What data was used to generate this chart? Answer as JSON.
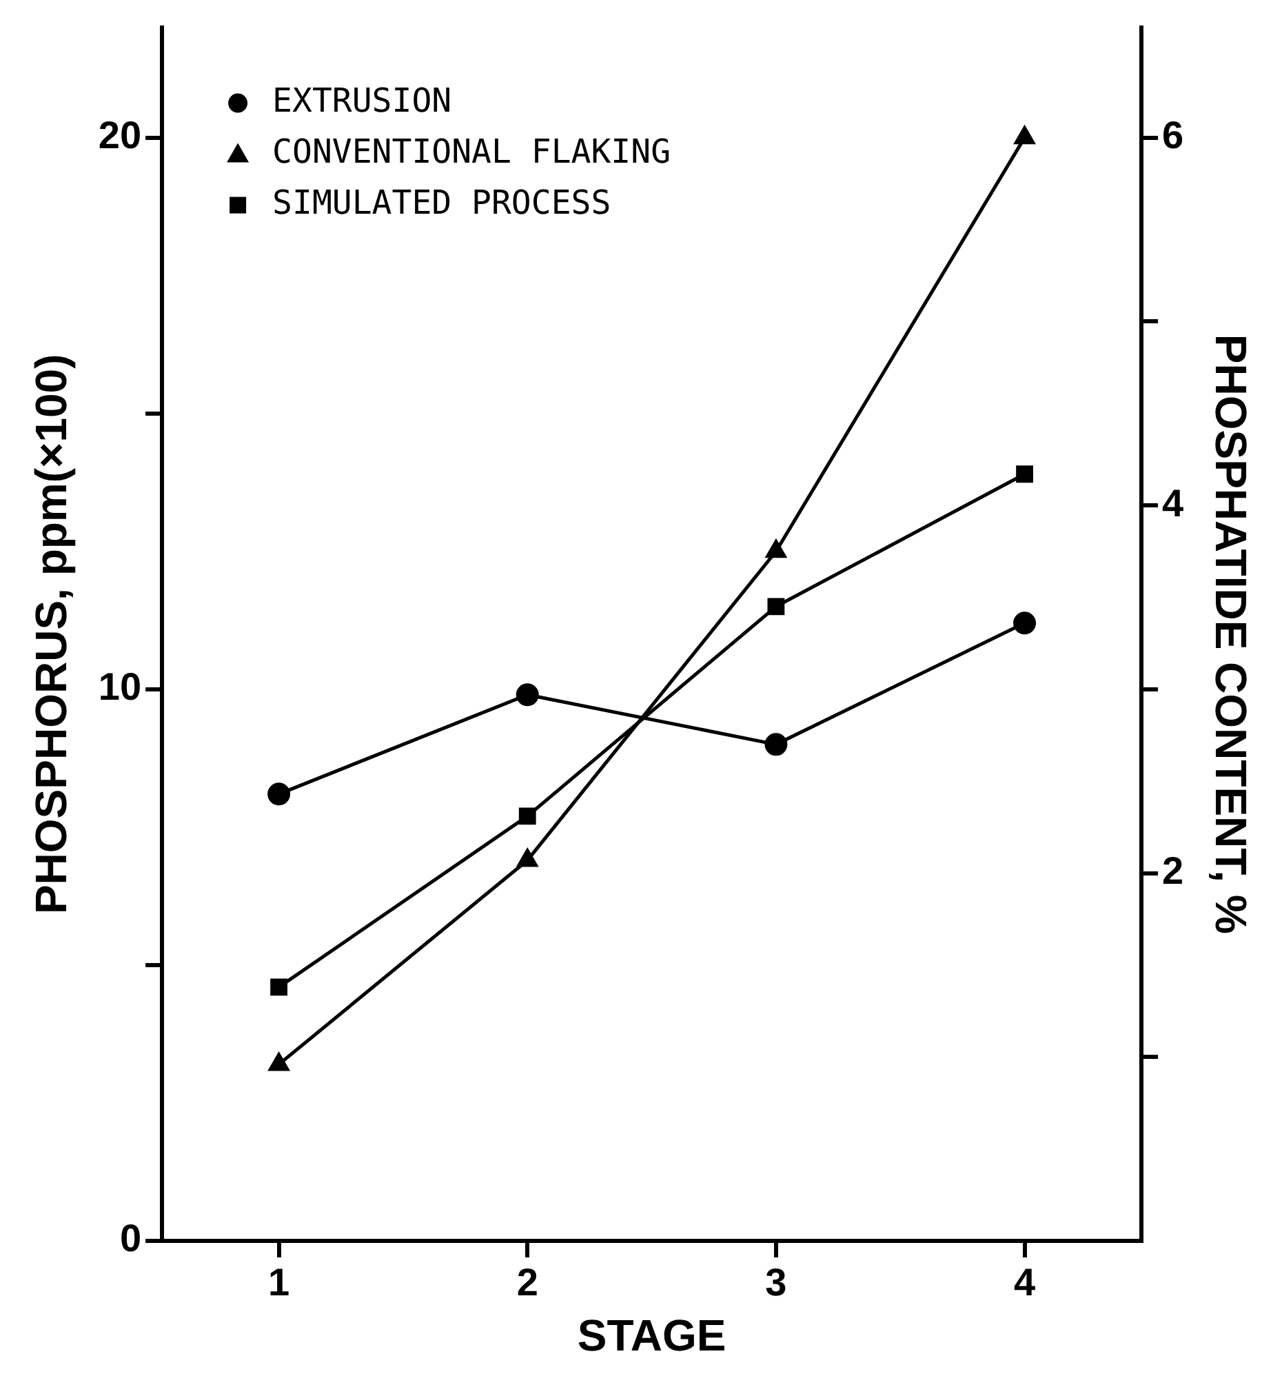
{
  "chart_data": {
    "type": "line",
    "xlabel": "STAGE",
    "ylabel": "PHOSPHORUS, ppm(×100)",
    "y2label": "PHOSPHATIDE CONTENT, %",
    "x": [
      1,
      2,
      3,
      4
    ],
    "xlim": [
      0.53,
      4.47
    ],
    "xticks": [
      1,
      2,
      3,
      4
    ],
    "ylim": [
      0,
      22
    ],
    "yticks": [
      0,
      {
        "value": 5,
        "label": null
      },
      10,
      {
        "value": 15,
        "label": null
      },
      20
    ],
    "y2lim": [
      0,
      6.6
    ],
    "y2ticks": [
      {
        "value": 1,
        "label": null
      },
      2,
      {
        "value": 3,
        "label": null
      },
      4,
      {
        "value": 5,
        "label": null
      },
      6
    ],
    "grid": false,
    "legend": "top left",
    "series": [
      {
        "name": "EXTRUSION",
        "color": "#000000",
        "marker": "circle",
        "values": [
          8.1,
          9.9,
          9.0,
          11.2
        ]
      },
      {
        "name": "CONVENTIONAL FLAKING",
        "color": "#000000",
        "marker": "triangle",
        "values": [
          3.2,
          6.9,
          12.5,
          20.0
        ]
      },
      {
        "name": "SIMULATED PROCESS",
        "color": "#000000",
        "marker": "square",
        "values": [
          4.6,
          7.7,
          11.5,
          13.9
        ]
      }
    ]
  }
}
